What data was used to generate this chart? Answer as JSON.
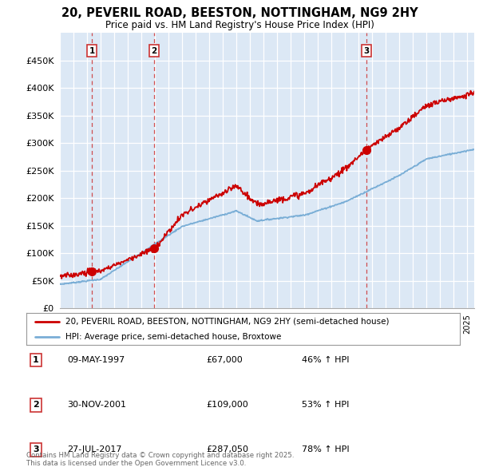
{
  "title": "20, PEVERIL ROAD, BEESTON, NOTTINGHAM, NG9 2HY",
  "subtitle": "Price paid vs. HM Land Registry's House Price Index (HPI)",
  "red_legend": "20, PEVERIL ROAD, BEESTON, NOTTINGHAM, NG9 2HY (semi-detached house)",
  "blue_legend": "HPI: Average price, semi-detached house, Broxtowe",
  "footer": "Contains HM Land Registry data © Crown copyright and database right 2025.\nThis data is licensed under the Open Government Licence v3.0.",
  "sales": [
    {
      "label": "1",
      "date": 1997.36,
      "price": 67000,
      "text": "09-MAY-1997",
      "price_text": "£67,000",
      "hpi_text": "46% ↑ HPI"
    },
    {
      "label": "2",
      "date": 2001.92,
      "price": 109000,
      "text": "30-NOV-2001",
      "price_text": "£109,000",
      "hpi_text": "53% ↑ HPI"
    },
    {
      "label": "3",
      "date": 2017.57,
      "price": 287050,
      "text": "27-JUL-2017",
      "price_text": "£287,050",
      "hpi_text": "78% ↑ HPI"
    }
  ],
  "ylim": [
    0,
    500000
  ],
  "yticks": [
    0,
    50000,
    100000,
    150000,
    200000,
    250000,
    300000,
    350000,
    400000,
    450000
  ],
  "ytick_labels": [
    "£0",
    "£50K",
    "£100K",
    "£150K",
    "£200K",
    "£250K",
    "£300K",
    "£350K",
    "£400K",
    "£450K"
  ],
  "bg_color": "#dce8f5",
  "red_color": "#cc0000",
  "blue_color": "#7aaed6",
  "dashed_color": "#cc3333"
}
